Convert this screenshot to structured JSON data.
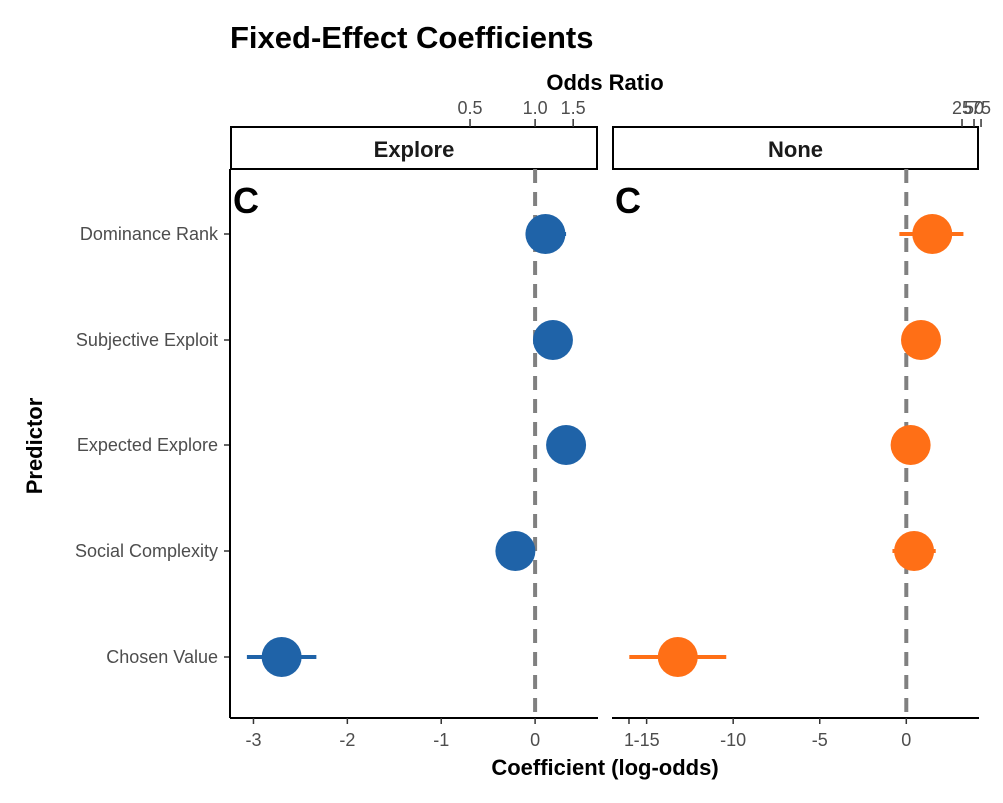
{
  "chart_data": {
    "type": "scatter",
    "title": "Fixed-Effect Coefficients",
    "xlabel": "Coefficient (log-odds)",
    "ylabel": "Predictor",
    "secondary_xlabel": "Odds Ratio",
    "categories": [
      "Dominance Rank",
      "Subjective Exploit",
      "Expected Explore",
      "Social Complexity",
      "Chosen Value"
    ],
    "reference_line": 0,
    "grid": false,
    "panels": [
      {
        "strip": "Explore",
        "tag": "C",
        "color": "#1f63a8",
        "xlim": [
          -3.25,
          0.67
        ],
        "xticks": [
          -3,
          -2,
          -1,
          0,
          1
        ],
        "xtick_labels": [
          "-3",
          "-2",
          "-1",
          "0",
          "1"
        ],
        "or_ticks": [
          0.5,
          1.0,
          1.5
        ],
        "or_tick_labels": [
          "0.5",
          "1.0",
          "1.5"
        ],
        "points": [
          {
            "category": "Dominance Rank",
            "estimate": 0.11,
            "lower": -0.1,
            "upper": 0.33
          },
          {
            "category": "Subjective Exploit",
            "estimate": 0.19,
            "lower": 0.1,
            "upper": 0.28
          },
          {
            "category": "Expected Explore",
            "estimate": 0.33,
            "lower": 0.25,
            "upper": 0.41
          },
          {
            "category": "Social Complexity",
            "estimate": -0.21,
            "lower": -0.31,
            "upper": -0.12
          },
          {
            "category": "Chosen Value",
            "estimate": -2.7,
            "lower": -3.07,
            "upper": -2.33
          }
        ]
      },
      {
        "strip": "None",
        "tag": "C",
        "color": "#ff6f16",
        "xlim": [
          -17.0,
          4.2
        ],
        "xticks": [
          -15,
          -10,
          -5,
          0
        ],
        "xtick_labels": [
          "-15",
          "-10",
          "-5",
          "0"
        ],
        "or_ticks": [
          25,
          50,
          75
        ],
        "or_tick_labels": [
          "25",
          "50",
          "75"
        ],
        "points": [
          {
            "category": "Dominance Rank",
            "estimate": 1.5,
            "lower": -0.4,
            "upper": 3.3
          },
          {
            "category": "Subjective Exploit",
            "estimate": 0.85,
            "lower": 0.5,
            "upper": 1.2
          },
          {
            "category": "Expected Explore",
            "estimate": 0.25,
            "lower": -0.1,
            "upper": 0.6
          },
          {
            "category": "Social Complexity",
            "estimate": 0.45,
            "lower": -0.8,
            "upper": 1.7
          },
          {
            "category": "Chosen Value",
            "estimate": -13.2,
            "lower": -16.0,
            "upper": -10.4
          }
        ]
      }
    ]
  }
}
